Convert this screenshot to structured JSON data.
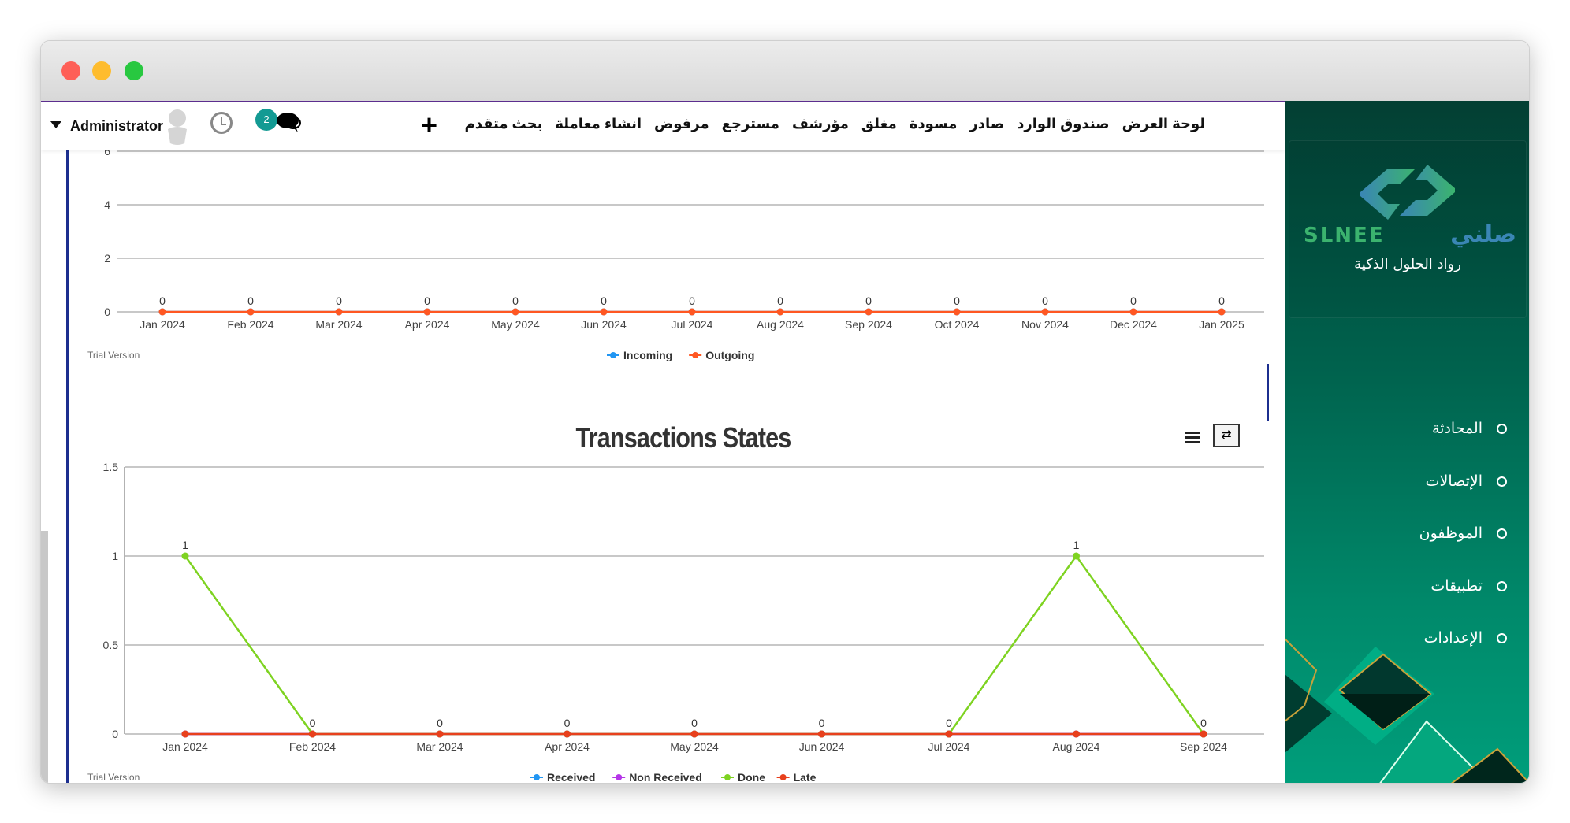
{
  "window": {
    "lights": [
      "#fe5f57",
      "#febc2e",
      "#28c840"
    ]
  },
  "topnav": {
    "links": [
      "لوحة العرض",
      "صندوق الوارد",
      "صادر",
      "مسودة",
      "مغلق",
      "مؤرشف",
      "مسترجع",
      "مرفوض",
      "انشاء معاملة",
      "بحث متقدم"
    ],
    "add_icon": "plus-icon",
    "user": "Administrator",
    "notification_count": "2"
  },
  "sidebar": {
    "logo": {
      "latin": "SLNEE",
      "arabic": "صلني",
      "tagline": "رواد الحلول الذكية"
    },
    "items": [
      {
        "label": "المحادثة"
      },
      {
        "label": "الإتصالات"
      },
      {
        "label": "الموظفون"
      },
      {
        "label": "تطبيقات"
      },
      {
        "label": "الإعدادات"
      }
    ]
  },
  "chart_data": [
    {
      "type": "line",
      "title": "",
      "categories": [
        "Jan 2024",
        "Feb 2024",
        "Mar 2024",
        "Apr 2024",
        "May 2024",
        "Jun 2024",
        "Jul 2024",
        "Aug 2024",
        "Sep 2024",
        "Oct 2024",
        "Nov 2024",
        "Dec 2024",
        "Jan 2025"
      ],
      "yticks": [
        "0",
        "2",
        "4",
        "6"
      ],
      "ylim": [
        0,
        6
      ],
      "grid": true,
      "legend": "bottom",
      "series": [
        {
          "name": "Incoming",
          "color": "#2196f3",
          "values": [
            0,
            0,
            0,
            0,
            0,
            0,
            0,
            0,
            0,
            0,
            0,
            0,
            0
          ]
        },
        {
          "name": "Outgoing",
          "color": "#ff5722",
          "values": [
            0,
            0,
            0,
            0,
            0,
            0,
            0,
            0,
            0,
            0,
            0,
            0,
            0
          ]
        }
      ],
      "credit": "Trial Version"
    },
    {
      "type": "line",
      "title": "Transactions States",
      "categories": [
        "Jan 2024",
        "Feb 2024",
        "Mar 2024",
        "Apr 2024",
        "May 2024",
        "Jun 2024",
        "Jul 2024",
        "Aug 2024",
        "Sep 2024"
      ],
      "yticks": [
        "0",
        "0.5",
        "1",
        "1.5"
      ],
      "ylim": [
        0,
        1.5
      ],
      "grid": true,
      "legend": "bottom",
      "series": [
        {
          "name": "Received",
          "color": "#2196f3",
          "values": [
            0,
            0,
            0,
            0,
            0,
            0,
            0,
            0,
            0
          ]
        },
        {
          "name": "Non Received",
          "color": "#b535e8",
          "values": [
            0,
            0,
            0,
            0,
            0,
            0,
            0,
            0,
            0
          ]
        },
        {
          "name": "Done",
          "color": "#7ed321",
          "values": [
            1,
            0,
            0,
            0,
            0,
            0,
            0,
            1,
            0
          ]
        },
        {
          "name": "Late",
          "color": "#e8401c",
          "values": [
            0,
            0,
            0,
            0,
            0,
            0,
            0,
            0,
            0
          ]
        }
      ],
      "credit": "Trial Version"
    }
  ]
}
